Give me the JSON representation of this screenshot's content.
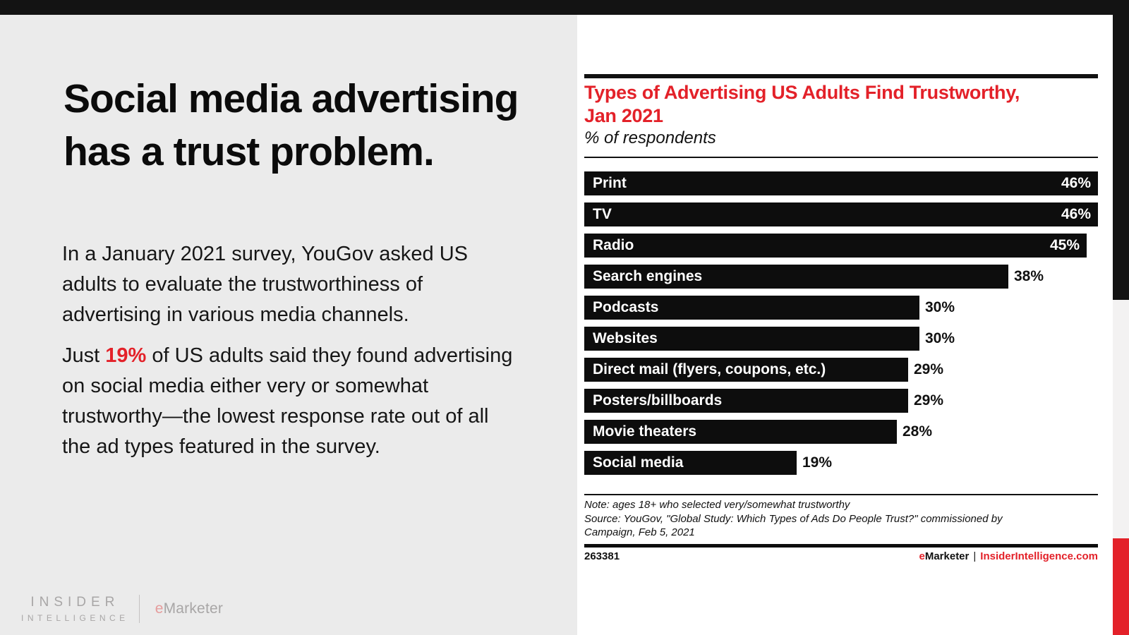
{
  "page": {
    "left_panel_bg": "#ebebeb",
    "top_bar_color": "#131313",
    "accent_red": "#e32129",
    "bar_black": "#0d0d0d"
  },
  "slide": {
    "headline_line1": "Social media advertising",
    "headline_line2": "has a trust problem.",
    "paragraph1_line1": "In a January 2021 survey, YouGov asked US",
    "paragraph1_line2": "adults to evaluate the trustworthiness of",
    "paragraph1_line3": "advertising in various media channels.",
    "paragraph2_line1_before": "Just ",
    "paragraph2_line1_highlight": "19%",
    "paragraph2_line1_after": " of US adults said they found advertising",
    "paragraph2_line2": "on social media either very or somewhat",
    "paragraph2_line3": "trustworthy—the lowest response rate out of all",
    "paragraph2_line4": "the ad types featured in the survey."
  },
  "watermark": {
    "line1": "INSIDER",
    "line2": "INTELLIGENCE",
    "brand_e": "e",
    "brand_rest": "Marketer"
  },
  "chart_header": {
    "title_line1": "Types of Advertising US Adults Find Trustworthy,",
    "title_line2": "Jan 2021",
    "subtitle": "% of respondents"
  },
  "chart_data": {
    "type": "bar",
    "orientation": "horizontal",
    "title": "Types of Advertising US Adults Find Trustworthy, Jan 2021",
    "subtitle": "% of respondents",
    "unit": "%",
    "categories": [
      "Print",
      "TV",
      "Radio",
      "Search engines",
      "Podcasts",
      "Websites",
      "Direct mail (flyers, coupons, etc.)",
      "Posters/billboards",
      "Movie theaters",
      "Social media"
    ],
    "values": [
      46,
      46,
      45,
      38,
      30,
      30,
      29,
      29,
      28,
      19
    ],
    "xlim": [
      0,
      46
    ],
    "bar_color": "#0d0d0d",
    "value_inside_threshold": 44,
    "grid": false,
    "legend": false,
    "note": "Note: ages 18+ who selected very/somewhat trustworthy",
    "source": "Source: YouGov, \"Global Study: Which Types of Ads Do People Trust?\" commissioned by Campaign, Feb 5, 2021"
  },
  "chart_footer": {
    "chart_id": "263381",
    "brand_e": "e",
    "brand_rest": "Marketer",
    "separator": "|",
    "site": "InsiderIntelligence.com"
  }
}
